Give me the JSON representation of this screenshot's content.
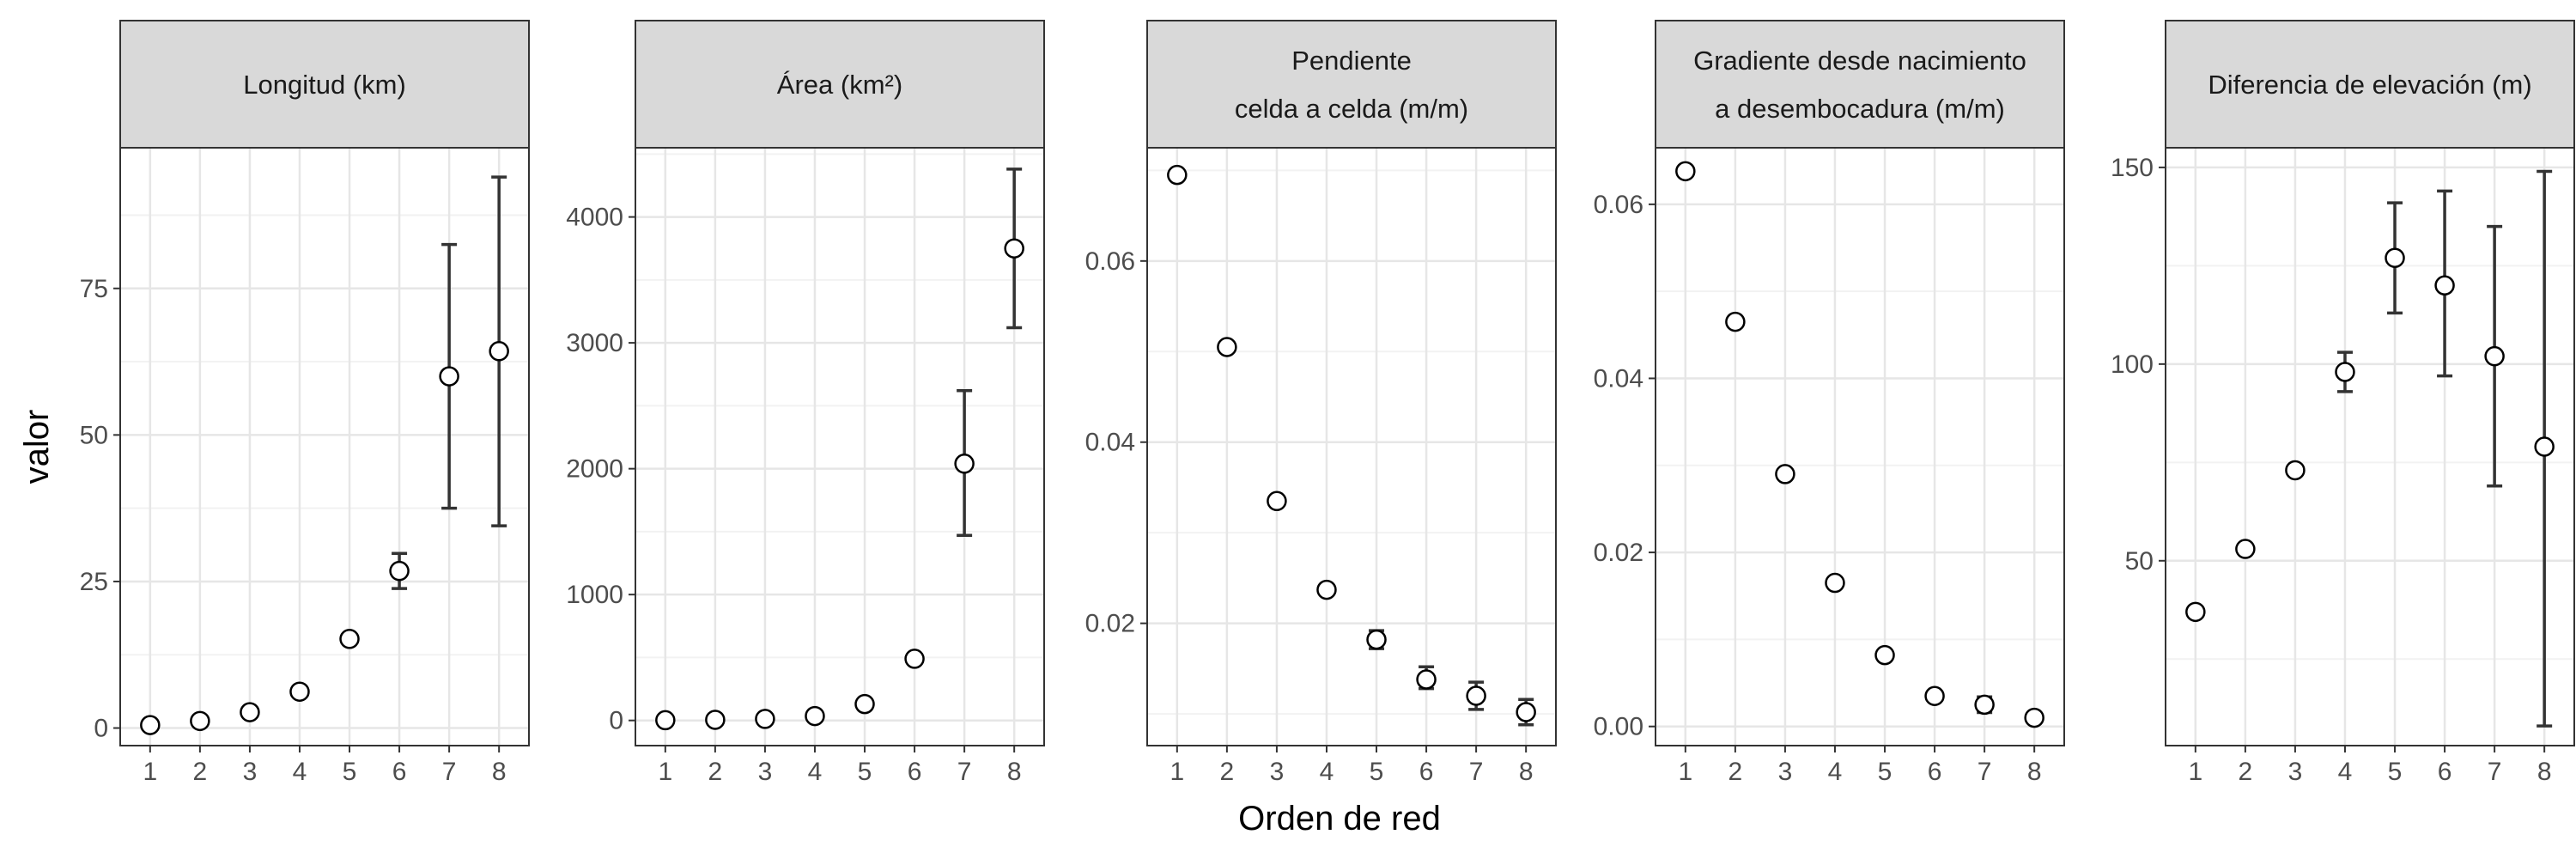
{
  "chart_data": {
    "type": "scatter",
    "facet_layout": "1 row x 5 columns, independent y scales",
    "xlabel": "Orden de red",
    "ylabel": "valor",
    "grid": true,
    "colors": {
      "strip_fill": "#d9d9d9",
      "panel_border": "#333333",
      "grid_major": "#e6e6e6",
      "grid_minor": "#f2f2f2",
      "point_fill": "#ffffff",
      "point_stroke": "#000000",
      "errorbar": "#333333"
    },
    "x": [
      1,
      2,
      3,
      4,
      5,
      6,
      7,
      8
    ],
    "panels": [
      {
        "title_lines": [
          "Longitud (km)"
        ],
        "ylim": [
          -3,
          99
        ],
        "yticks": [
          0,
          25,
          50,
          75
        ],
        "ytick_labels": [
          "0",
          "25",
          "50",
          "75"
        ],
        "y": [
          0.5,
          1.2,
          2.7,
          6.2,
          15.2,
          26.8,
          60.0,
          64.3
        ],
        "ymin": [
          null,
          null,
          null,
          null,
          null,
          23.8,
          37.5,
          34.5
        ],
        "ymax": [
          null,
          null,
          null,
          null,
          null,
          29.8,
          82.5,
          94.0
        ]
      },
      {
        "title_lines": [
          "Área (km²)"
        ],
        "ylim": [
          -200,
          4550
        ],
        "yticks": [
          0,
          1000,
          2000,
          3000,
          4000
        ],
        "ytick_labels": [
          "0",
          "1000",
          "2000",
          "3000",
          "4000"
        ],
        "y": [
          2,
          5,
          12,
          35,
          130,
          490,
          2040,
          3750
        ],
        "ymin": [
          null,
          null,
          null,
          null,
          null,
          null,
          1470,
          3120
        ],
        "ymax": [
          null,
          null,
          null,
          null,
          null,
          null,
          2620,
          4380
        ]
      },
      {
        "title_lines": [
          "Pendiente",
          "celda a celda (m/m)"
        ],
        "ylim": [
          0.0065,
          0.0725
        ],
        "yticks": [
          0.02,
          0.04,
          0.06
        ],
        "ytick_labels": [
          "0.02",
          "0.04",
          "0.06"
        ],
        "y": [
          0.0695,
          0.0505,
          0.0335,
          0.0237,
          0.0182,
          0.0138,
          0.012,
          0.0102
        ],
        "ymin": [
          null,
          null,
          null,
          null,
          0.0172,
          0.0128,
          0.0105,
          0.0088
        ],
        "ymax": [
          null,
          null,
          null,
          null,
          0.0192,
          0.0152,
          0.0135,
          0.0116
        ]
      },
      {
        "title_lines": [
          "Gradiente desde nacimiento",
          "a desembocadura (m/m)"
        ],
        "ylim": [
          -0.0022,
          0.0665
        ],
        "yticks": [
          0.0,
          0.02,
          0.04,
          0.06
        ],
        "ytick_labels": [
          "0.00",
          "0.02",
          "0.04",
          "0.06"
        ],
        "y": [
          0.0638,
          0.0465,
          0.029,
          0.0165,
          0.0082,
          0.0035,
          0.0025,
          0.001
        ],
        "ymin": [
          null,
          null,
          null,
          null,
          null,
          null,
          0.0016,
          null
        ],
        "ymax": [
          null,
          null,
          null,
          null,
          null,
          null,
          0.0034,
          null
        ]
      },
      {
        "title_lines": [
          "Diferencia de elevación (m)"
        ],
        "ylim": [
          3,
          155
        ],
        "yticks": [
          50,
          100,
          150
        ],
        "ytick_labels": [
          "50",
          "100",
          "150"
        ],
        "y": [
          37,
          53,
          73,
          98,
          127,
          120,
          102,
          79
        ],
        "ymin": [
          null,
          null,
          null,
          93,
          113,
          97,
          69,
          8
        ],
        "ymax": [
          null,
          null,
          null,
          103,
          141,
          144,
          135,
          149
        ]
      }
    ]
  }
}
